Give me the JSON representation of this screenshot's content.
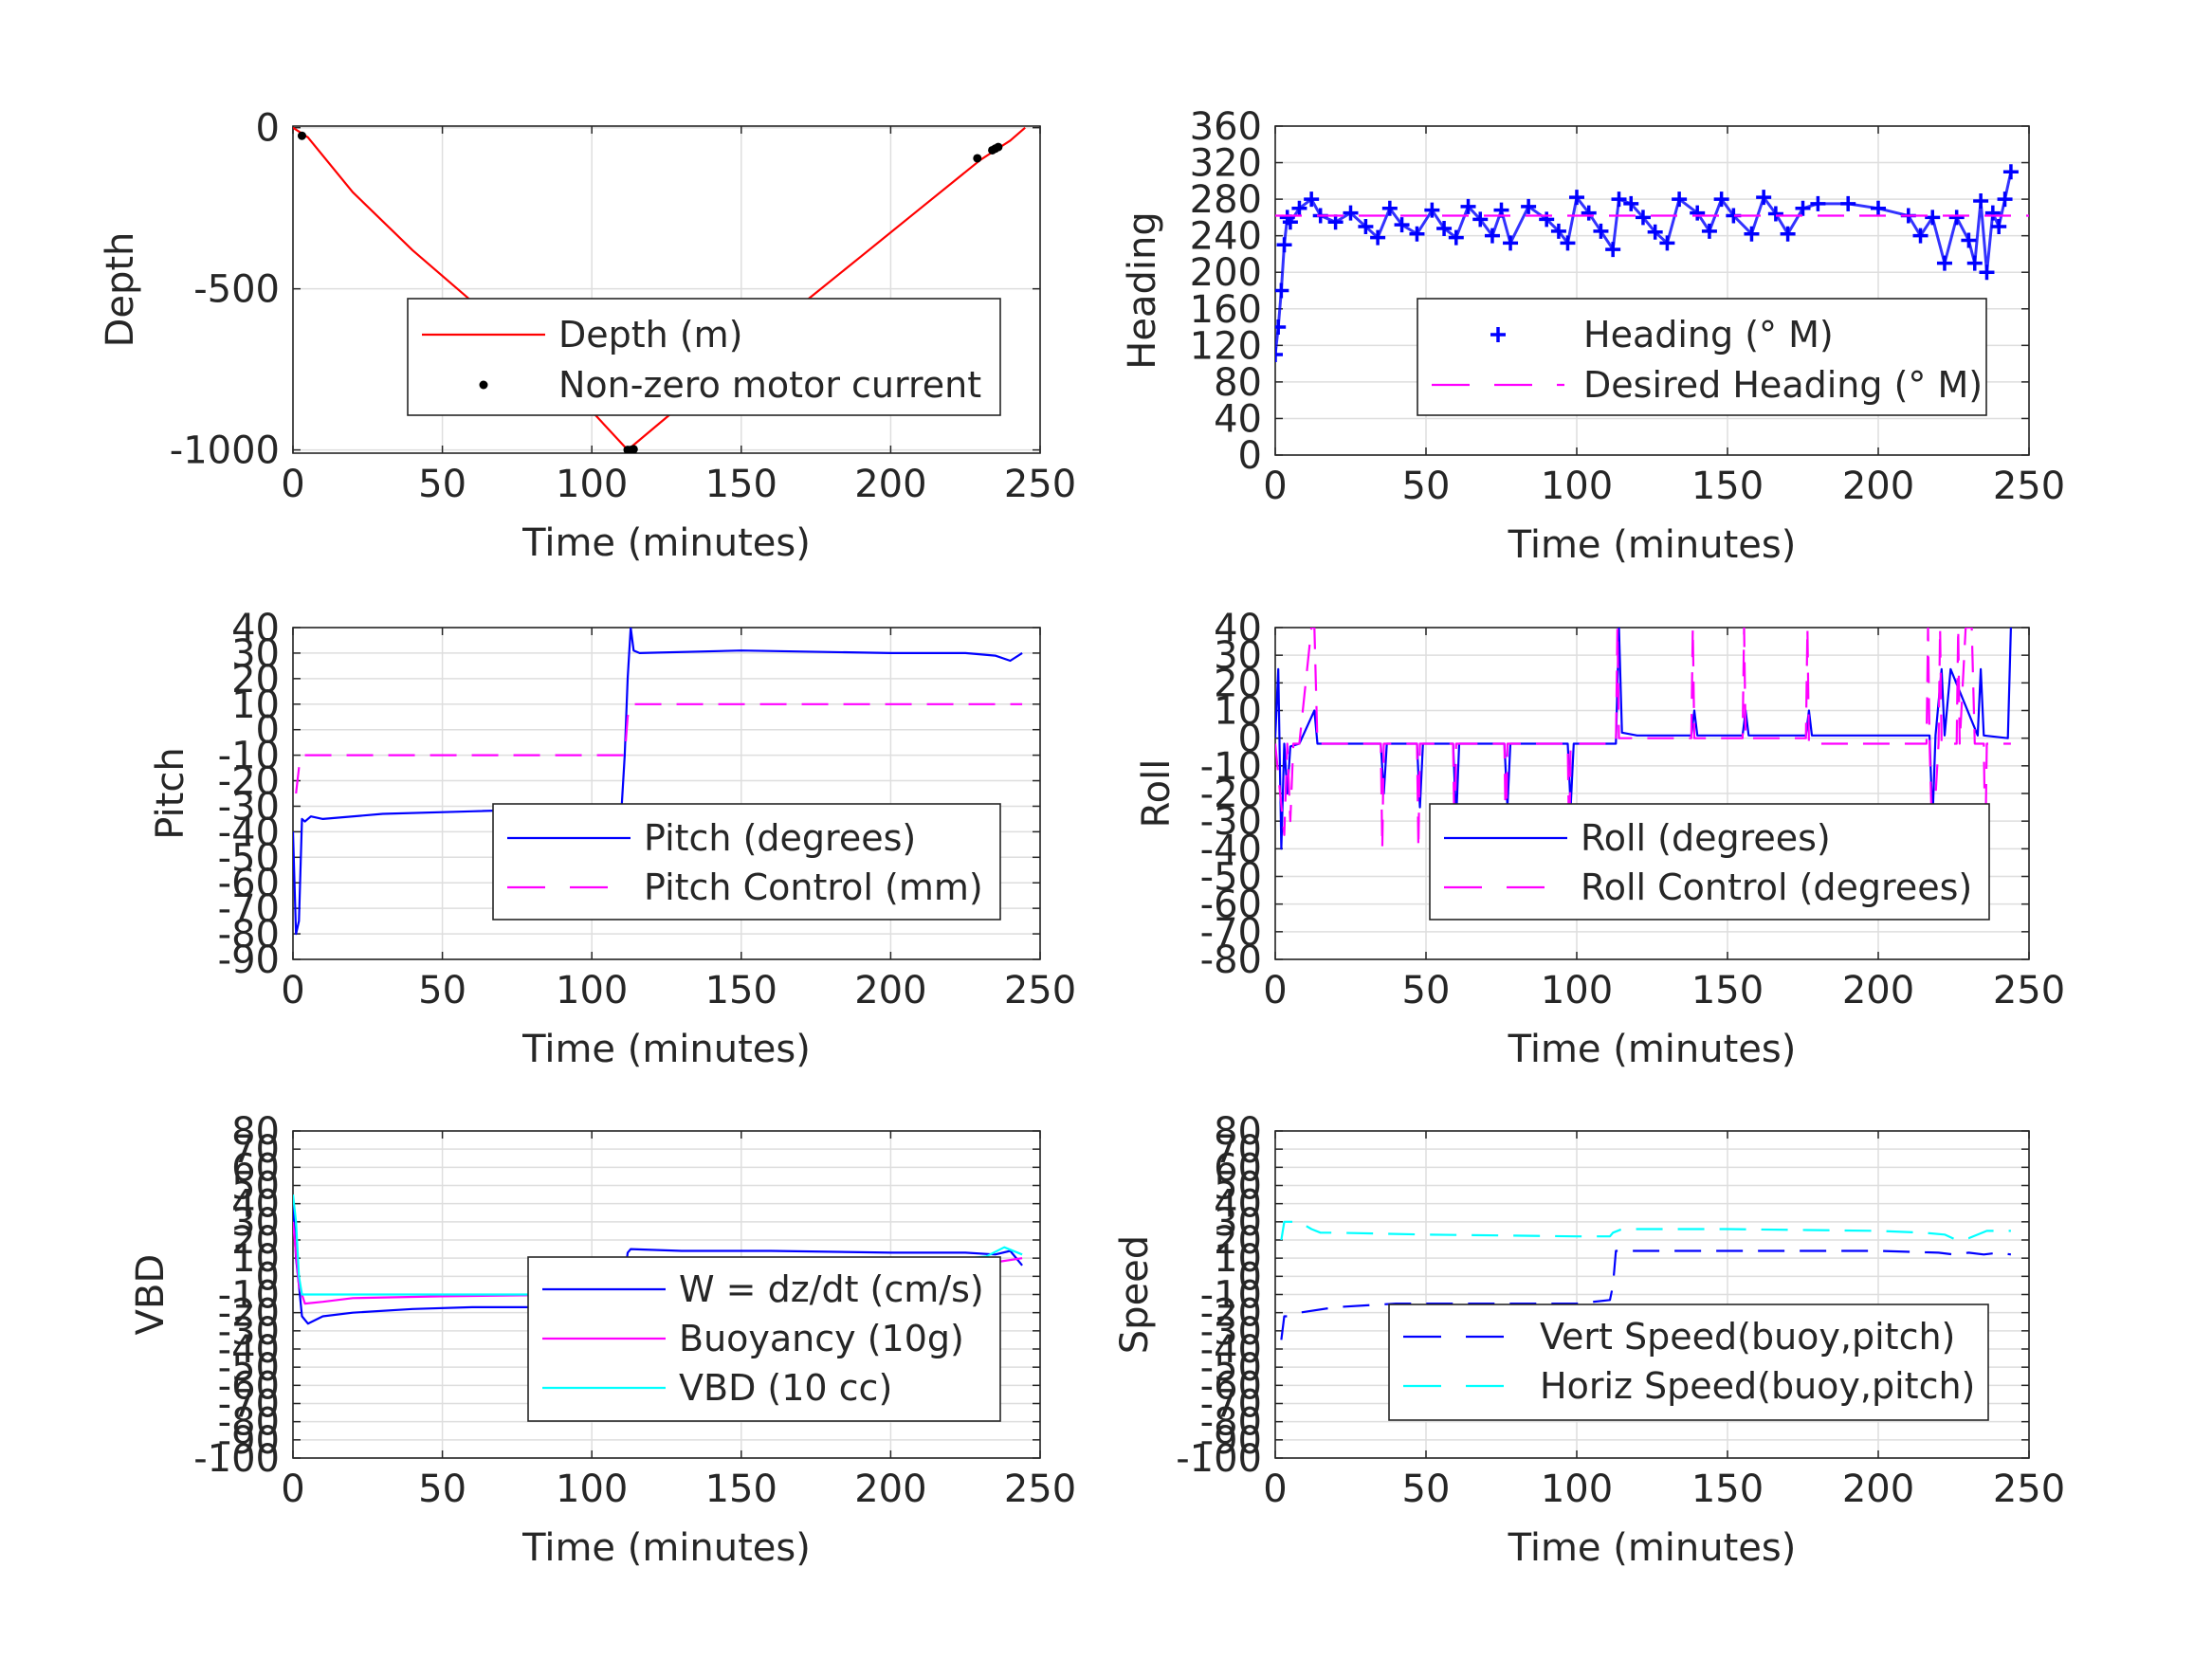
{
  "chart_data": [
    {
      "type": "line",
      "xlabel": "Time (minutes)",
      "ylabel": "Depth",
      "xlim": [
        0,
        250
      ],
      "ylim": [
        -1010,
        5
      ],
      "xticks": [
        0,
        50,
        100,
        150,
        200,
        250
      ],
      "yticks": [
        0,
        -500,
        -1000
      ],
      "xtick_labels": [
        "0",
        "50",
        "100",
        "150",
        "200",
        "250"
      ],
      "ytick_labels": [
        "0",
        "-500",
        "-1000"
      ],
      "grid": true,
      "legend_position": "center-right",
      "legend": [
        "Depth (m)",
        "Non-zero motor current"
      ],
      "series": [
        {
          "name": "Depth (m)",
          "color": "#ff0000",
          "style": "solid",
          "x": [
            0,
            5,
            20,
            40,
            60,
            80,
            100,
            112,
            130,
            150,
            170,
            190,
            210,
            230,
            235,
            240,
            245
          ],
          "y": [
            0,
            -30,
            -200,
            -380,
            -540,
            -700,
            -880,
            -1000,
            -860,
            -700,
            -550,
            -400,
            -250,
            -100,
            -70,
            -40,
            0
          ]
        },
        {
          "name": "Non-zero motor current",
          "color": "#000000",
          "style": "marker-dot",
          "x": [
            3,
            112,
            113,
            114,
            229,
            234,
            235,
            236
          ],
          "y": [
            -25,
            -1000,
            -1000,
            -998,
            -95,
            -70,
            -65,
            -60
          ]
        }
      ]
    },
    {
      "type": "line",
      "xlabel": "Time (minutes)",
      "ylabel": "Heading",
      "xlim": [
        0,
        250
      ],
      "ylim": [
        0,
        360
      ],
      "xticks": [
        0,
        50,
        100,
        150,
        200,
        250
      ],
      "yticks": [
        0,
        40,
        80,
        120,
        160,
        200,
        240,
        280,
        320,
        360
      ],
      "xtick_labels": [
        "0",
        "50",
        "100",
        "150",
        "200",
        "250"
      ],
      "ytick_labels": [
        "0",
        "40",
        "80",
        "120",
        "160",
        "200",
        "240",
        "280",
        "320",
        "360"
      ],
      "grid": true,
      "legend_position": "center-right",
      "legend": [
        "Heading (° M)",
        "Desired Heading (° M)"
      ],
      "series": [
        {
          "name": "Heading (° M)",
          "color": "#0000ff",
          "style": "marker-plus",
          "x": [
            0,
            1,
            2,
            3,
            4,
            5,
            8,
            12,
            15,
            20,
            25,
            30,
            34,
            38,
            42,
            47,
            52,
            56,
            60,
            64,
            68,
            72,
            75,
            78,
            84,
            90,
            94,
            97,
            100,
            104,
            108,
            112,
            114,
            118,
            122,
            126,
            130,
            134,
            140,
            144,
            148,
            152,
            158,
            162,
            166,
            170,
            175,
            180,
            190,
            200,
            210,
            214,
            218,
            222,
            226,
            230,
            232,
            234,
            236,
            238,
            240,
            242,
            244
          ],
          "y": [
            110,
            140,
            180,
            230,
            260,
            255,
            270,
            280,
            262,
            255,
            265,
            250,
            238,
            270,
            252,
            242,
            268,
            248,
            238,
            272,
            258,
            240,
            268,
            232,
            272,
            258,
            245,
            232,
            282,
            265,
            245,
            225,
            280,
            275,
            260,
            244,
            232,
            280,
            265,
            245,
            280,
            262,
            242,
            282,
            264,
            242,
            270,
            275,
            275,
            270,
            262,
            240,
            260,
            210,
            260,
            235,
            210,
            278,
            200,
            265,
            250,
            280,
            310
          ]
        },
        {
          "name": "Desired Heading (° M)",
          "color": "#ff00ff",
          "style": "dashed",
          "x": [
            0,
            250
          ],
          "y": [
            262,
            262
          ]
        }
      ]
    },
    {
      "type": "line",
      "xlabel": "Time (minutes)",
      "ylabel": "Pitch",
      "xlim": [
        0,
        250
      ],
      "ylim": [
        -90,
        40
      ],
      "xticks": [
        0,
        50,
        100,
        150,
        200,
        250
      ],
      "yticks": [
        -90,
        -80,
        -70,
        -60,
        -50,
        -40,
        -30,
        -20,
        -10,
        0,
        10,
        20,
        30,
        40
      ],
      "xtick_labels": [
        "0",
        "50",
        "100",
        "150",
        "200",
        "250"
      ],
      "ytick_labels": [
        "-90",
        "-80",
        "-70",
        "-60",
        "-50",
        "-40",
        "-30",
        "-20",
        "-10",
        "0",
        "10",
        "20",
        "30",
        "40"
      ],
      "grid": true,
      "legend_position": "center-right",
      "legend": [
        "Pitch (degrees)",
        "Pitch Control (mm)"
      ],
      "series": [
        {
          "name": "Pitch (degrees)",
          "color": "#0000ff",
          "style": "solid",
          "x": [
            0,
            1,
            2,
            3,
            4,
            6,
            10,
            30,
            60,
            90,
            110,
            111,
            112,
            113,
            114,
            116,
            150,
            200,
            225,
            235,
            240,
            244
          ],
          "y": [
            -40,
            -80,
            -75,
            -35,
            -36,
            -34,
            -35,
            -33,
            -32,
            -31,
            -30,
            -10,
            20,
            40,
            31,
            30,
            31,
            30,
            30,
            29,
            27,
            30
          ]
        },
        {
          "name": "Pitch Control (mm)",
          "color": "#ff00ff",
          "style": "dashed",
          "x": [
            1,
            2,
            3,
            5,
            50,
            100,
            111,
            112,
            113,
            150,
            200,
            244
          ],
          "y": [
            -25,
            -15,
            -10,
            -10,
            -10,
            -10,
            -10,
            5,
            10,
            10,
            10,
            10
          ]
        }
      ]
    },
    {
      "type": "line",
      "xlabel": "Time (minutes)",
      "ylabel": "Roll",
      "xlim": [
        0,
        250
      ],
      "ylim": [
        -80,
        40
      ],
      "xticks": [
        0,
        50,
        100,
        150,
        200,
        250
      ],
      "yticks": [
        -80,
        -70,
        -60,
        -50,
        -40,
        -30,
        -20,
        -10,
        0,
        10,
        20,
        30,
        40
      ],
      "xtick_labels": [
        "0",
        "50",
        "100",
        "150",
        "200",
        "250"
      ],
      "ytick_labels": [
        "-80",
        "-70",
        "-60",
        "-50",
        "-40",
        "-30",
        "-20",
        "-10",
        "0",
        "10",
        "20",
        "30",
        "40"
      ],
      "grid": true,
      "legend_position": "center-right",
      "legend": [
        "Roll (degrees)",
        "Roll Control (degrees)"
      ],
      "series": [
        {
          "name": "Roll (degrees)",
          "color": "#0000ff",
          "style": "solid",
          "x": [
            0,
            1,
            2,
            3,
            4,
            5,
            8,
            13,
            14,
            15,
            35,
            36,
            37,
            47,
            48,
            49,
            59,
            60,
            61,
            76,
            77,
            78,
            97,
            98,
            99,
            113,
            114,
            115,
            120,
            138,
            139,
            140,
            155,
            156,
            157,
            176,
            177,
            178,
            210,
            217,
            218,
            219,
            221,
            222,
            224,
            233,
            234,
            235,
            243,
            244
          ],
          "y": [
            0,
            25,
            -40,
            -2,
            -20,
            -3,
            -2,
            10,
            -2,
            -2,
            -2,
            -20,
            -2,
            -2,
            -25,
            -2,
            -2,
            -30,
            -2,
            -2,
            -25,
            -2,
            -2,
            -25,
            -2,
            -2,
            40,
            2,
            1,
            1,
            10,
            1,
            1,
            10,
            1,
            1,
            10,
            1,
            1,
            1,
            -30,
            1,
            25,
            1,
            25,
            1,
            25,
            1,
            0,
            40
          ]
        },
        {
          "name": "Roll Control (degrees)",
          "color": "#ff00ff",
          "style": "dashed",
          "x": [
            0,
            3,
            4,
            5,
            6,
            8,
            12,
            13,
            14,
            15,
            35,
            35.5,
            36,
            47,
            47.5,
            48,
            59,
            59.5,
            60,
            76,
            76.5,
            77,
            97,
            97.5,
            98,
            113,
            113.5,
            114,
            138,
            138.5,
            139,
            155,
            155.5,
            156,
            176,
            176.5,
            177,
            200,
            216,
            216.5,
            217,
            218,
            220,
            220.5,
            221,
            226,
            226.5,
            227,
            229,
            231,
            232,
            235,
            235.5,
            236,
            244
          ],
          "y": [
            -2,
            -35,
            -2,
            -30,
            -2,
            -2,
            40,
            40,
            -2,
            -2,
            -2,
            -40,
            -2,
            -2,
            -40,
            -2,
            -2,
            -40,
            -2,
            -2,
            -40,
            -2,
            -2,
            -40,
            -2,
            -2,
            40,
            0,
            0,
            40,
            0,
            0,
            40,
            0,
            0,
            40,
            -2,
            -2,
            -2,
            40,
            -2,
            -40,
            -2,
            40,
            -2,
            -2,
            40,
            -2,
            40,
            40,
            -2,
            -2,
            -40,
            -2,
            -2
          ]
        }
      ]
    },
    {
      "type": "line",
      "xlabel": "Time (minutes)",
      "ylabel": "VBD",
      "xlim": [
        0,
        250
      ],
      "ylim": [
        -100,
        80
      ],
      "xticks": [
        0,
        50,
        100,
        150,
        200,
        250
      ],
      "yticks": [
        -100,
        -90,
        -80,
        -70,
        -60,
        -50,
        -40,
        -30,
        -20,
        -10,
        0,
        10,
        20,
        30,
        40,
        50,
        60,
        70,
        80
      ],
      "xtick_labels": [
        "0",
        "50",
        "100",
        "150",
        "200",
        "250"
      ],
      "ytick_labels": [
        "-100",
        "-90",
        "-80",
        "-70",
        "-60",
        "-50",
        "-40",
        "-30",
        "-20",
        "-10",
        "0",
        "10",
        "20",
        "30",
        "40",
        "50",
        "60",
        "70",
        "80"
      ],
      "grid": true,
      "legend_position": "center-right",
      "legend": [
        "W = dz/dt (cm/s)",
        "Buoyancy (10g)",
        "VBD (10 cc)"
      ],
      "series": [
        {
          "name": "W = dz/dt (cm/s)",
          "color": "#0000ff",
          "style": "solid",
          "x": [
            0,
            1,
            2,
            3,
            5,
            10,
            20,
            40,
            60,
            80,
            100,
            110,
            111,
            112,
            113,
            130,
            160,
            200,
            225,
            235,
            240,
            244
          ],
          "y": [
            40,
            10,
            -5,
            -22,
            -26,
            -22,
            -20,
            -18,
            -17,
            -17,
            -16,
            -16,
            0,
            13,
            15,
            14,
            14,
            13,
            13,
            12,
            14,
            6
          ]
        },
        {
          "name": "Buoyancy (10g)",
          "color": "#ff00ff",
          "style": "solid",
          "x": [
            0,
            2,
            4,
            10,
            20,
            50,
            100,
            111,
            113,
            150,
            200,
            224,
            228,
            236,
            244
          ],
          "y": [
            30,
            -5,
            -15,
            -14,
            -12,
            -11,
            -10,
            -10,
            10,
            9,
            9,
            8,
            5,
            8,
            10
          ]
        },
        {
          "name": "VBD (10 cc)",
          "color": "#00ffff",
          "style": "solid",
          "x": [
            0,
            1,
            2,
            3,
            10,
            50,
            100,
            111,
            112,
            113,
            150,
            200,
            226,
            232,
            238,
            244
          ],
          "y": [
            45,
            30,
            0,
            -10,
            -10,
            -10,
            -10,
            -10,
            0,
            10,
            10,
            10,
            10,
            11,
            16,
            12
          ]
        }
      ]
    },
    {
      "type": "line",
      "xlabel": "Time (minutes)",
      "ylabel": "Speed",
      "xlim": [
        0,
        250
      ],
      "ylim": [
        -100,
        80
      ],
      "xticks": [
        0,
        50,
        100,
        150,
        200,
        250
      ],
      "yticks": [
        -100,
        -90,
        -80,
        -70,
        -60,
        -50,
        -40,
        -30,
        -20,
        -10,
        0,
        10,
        20,
        30,
        40,
        50,
        60,
        70,
        80
      ],
      "xtick_labels": [
        "0",
        "50",
        "100",
        "150",
        "200",
        "250"
      ],
      "ytick_labels": [
        "-100",
        "-90",
        "-80",
        "-70",
        "-60",
        "-50",
        "-40",
        "-30",
        "-20",
        "-10",
        "0",
        "10",
        "20",
        "30",
        "40",
        "50",
        "60",
        "70",
        "80"
      ],
      "grid": true,
      "legend_position": "center-right",
      "legend": [
        "Vert Speed(buoy,pitch)",
        "Horiz Speed(buoy,pitch)"
      ],
      "series": [
        {
          "name": "Vert Speed(buoy,pitch)",
          "color": "#0000ff",
          "style": "dashed",
          "x": [
            2,
            3,
            4,
            8,
            20,
            40,
            60,
            80,
            100,
            111,
            112,
            113,
            115,
            150,
            200,
            220,
            225,
            230,
            235,
            240,
            244
          ],
          "y": [
            -35,
            -22,
            -22,
            -20,
            -17,
            -15,
            -15,
            -15,
            -15,
            -13,
            -5,
            14,
            14,
            14,
            14,
            13,
            12,
            13,
            12,
            13,
            12
          ]
        },
        {
          "name": "Horiz Speed(buoy,pitch)",
          "color": "#00ffff",
          "style": "dashed",
          "x": [
            2,
            3,
            4,
            8,
            12,
            15,
            20,
            50,
            100,
            111,
            112,
            115,
            150,
            200,
            215,
            222,
            226,
            230,
            236,
            244
          ],
          "y": [
            20,
            30,
            30,
            30,
            26,
            24,
            24,
            23,
            22,
            22,
            24,
            26,
            26,
            25,
            24,
            23,
            20,
            21,
            25,
            25
          ]
        }
      ]
    }
  ]
}
